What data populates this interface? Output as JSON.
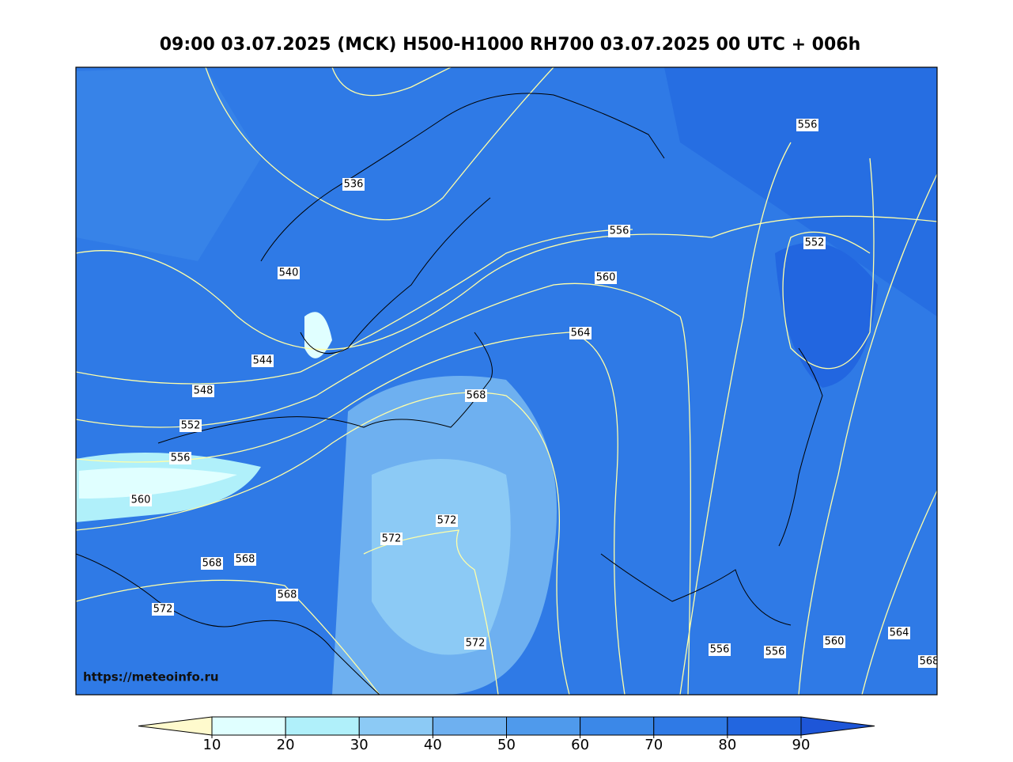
{
  "header": {
    "title": "09:00 03.07.2025 (MCK) H500-H1000 RH700 03.07.2025 00 UTC + 006h"
  },
  "map": {
    "contour_labels": [
      556,
      536,
      556,
      552,
      540,
      560,
      564,
      544,
      548,
      568,
      552,
      556,
      560,
      572,
      572,
      568,
      568,
      568,
      572,
      572,
      556,
      556,
      560,
      564,
      568
    ],
    "source": "https://meteoinfo.ru"
  },
  "colorbar": {
    "ticks": [
      10,
      20,
      30,
      40,
      50,
      60,
      70,
      80,
      90
    ],
    "colors": [
      "#fffacd",
      "#e0ffff",
      "#b0f0fa",
      "#8ccaf5",
      "#6eb0f0",
      "#4f9aec",
      "#3b88e8",
      "#2f7ae6",
      "#2266e0",
      "#1e56d8"
    ]
  }
}
